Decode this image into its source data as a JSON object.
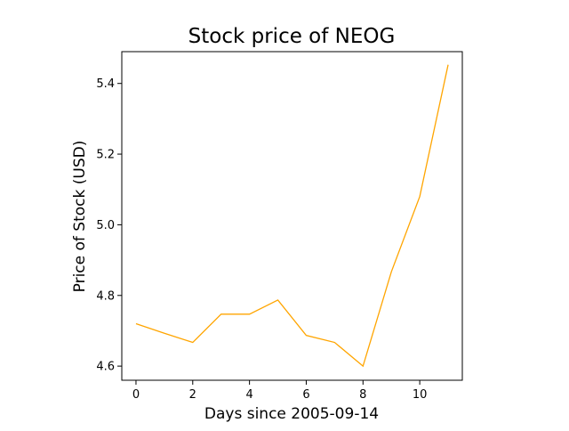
{
  "chart_data": {
    "type": "line",
    "title": "Stock price of NEOG",
    "xlabel": "Days since 2005-09-14",
    "ylabel": "Price of Stock (USD)",
    "x": [
      0,
      1,
      2,
      3,
      4,
      5,
      6,
      7,
      8,
      9,
      10,
      11
    ],
    "series": [
      {
        "values": [
          4.72,
          4.693,
          4.667,
          4.747,
          4.747,
          4.787,
          4.687,
          4.667,
          4.6,
          4.867,
          5.08,
          5.453
        ],
        "color": "#ffa500"
      }
    ],
    "xlim": [
      -0.5,
      11.5
    ],
    "ylim": [
      4.56,
      5.49
    ],
    "xticks": [
      0,
      2,
      4,
      6,
      8,
      10
    ],
    "yticks": [
      4.6,
      4.8,
      5.0,
      5.2,
      5.4
    ],
    "xtick_labels": [
      "0",
      "2",
      "4",
      "6",
      "8",
      "10"
    ],
    "ytick_labels": [
      "4.6",
      "4.8",
      "5.0",
      "5.2",
      "5.4"
    ],
    "grid": false,
    "legend": "none"
  }
}
